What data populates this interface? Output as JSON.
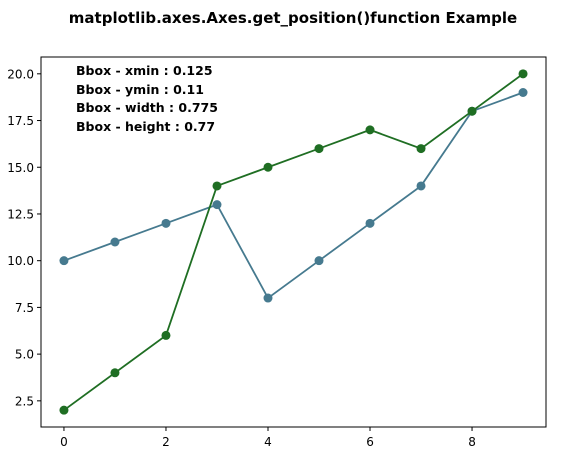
{
  "chart_data": {
    "type": "line",
    "title": "matplotlib.axes.Axes.get_position()function Example",
    "xlabel": "",
    "ylabel": "",
    "xlim": [
      -0.45,
      9.45
    ],
    "ylim": [
      1.1,
      20.9
    ],
    "xticks": [
      0,
      2,
      4,
      6,
      8
    ],
    "xtick_labels": [
      "0",
      "2",
      "4",
      "6",
      "8"
    ],
    "yticks": [
      2.5,
      5.0,
      7.5,
      10.0,
      12.5,
      15.0,
      17.5,
      20.0
    ],
    "ytick_labels": [
      "2.5",
      "5.0",
      "7.5",
      "10.0",
      "12.5",
      "15.0",
      "17.5",
      "20.0"
    ],
    "grid": false,
    "x": [
      0,
      1,
      2,
      3,
      4,
      5,
      6,
      7,
      8,
      9
    ],
    "series": [
      {
        "color": "#467a8f",
        "values": [
          10,
          11,
          12,
          13,
          8,
          10,
          12,
          14,
          18,
          19
        ]
      },
      {
        "color": "#1f6e23",
        "values": [
          2,
          4,
          6,
          14,
          15,
          16,
          17,
          16,
          18,
          20
        ]
      }
    ],
    "annotations": [
      "Bbox - xmin : 0.125",
      "Bbox - ymin : 0.11",
      "Bbox - width : 0.775",
      "Bbox - height : 0.77"
    ]
  }
}
